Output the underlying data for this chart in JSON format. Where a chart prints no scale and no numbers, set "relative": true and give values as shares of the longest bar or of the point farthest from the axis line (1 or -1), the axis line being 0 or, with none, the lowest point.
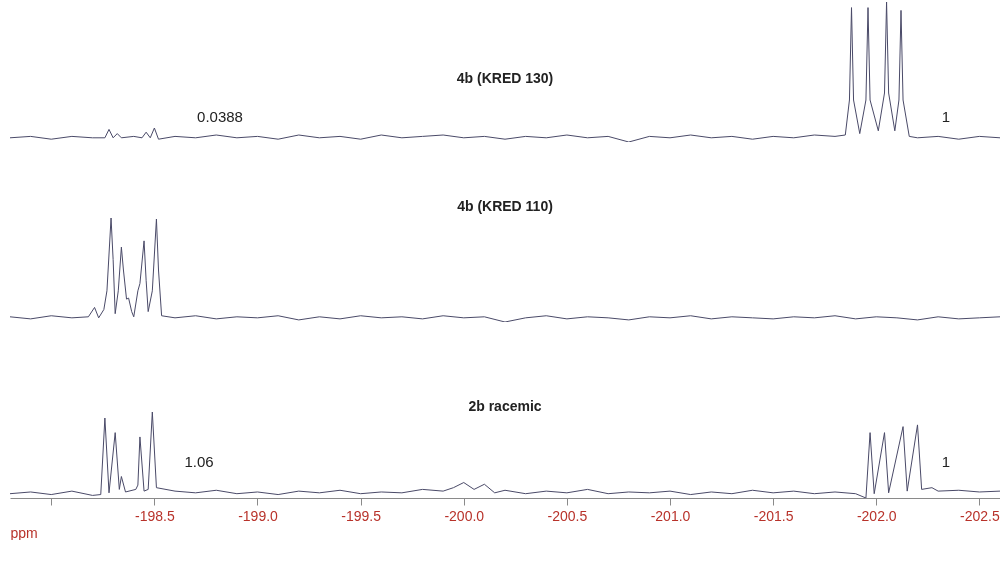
{
  "chart_data": [
    {
      "type": "line",
      "title": "4b (KRED 130)",
      "relative": true,
      "color": "#4a4a68",
      "xlim": [
        -197.8,
        -202.6
      ],
      "tick_labels": false,
      "x": [
        -197.8,
        -197.9,
        -198.0,
        -198.1,
        -198.2,
        -198.26,
        -198.28,
        -198.3,
        -198.32,
        -198.34,
        -198.4,
        -198.44,
        -198.46,
        -198.48,
        -198.5,
        -198.52,
        -198.6,
        -198.7,
        -198.8,
        -198.9,
        -199.0,
        -199.1,
        -199.2,
        -199.3,
        -199.4,
        -199.5,
        -199.6,
        -199.7,
        -199.8,
        -199.9,
        -200.0,
        -200.1,
        -200.2,
        -200.3,
        -200.4,
        -200.5,
        -200.6,
        -200.7,
        -200.8,
        -200.9,
        -201.0,
        -201.1,
        -201.2,
        -201.3,
        -201.4,
        -201.5,
        -201.6,
        -201.7,
        -201.8,
        -201.85,
        -201.87,
        -201.88,
        -201.89,
        -201.92,
        -201.95,
        -201.96,
        -201.97,
        -202.01,
        -202.04,
        -202.05,
        -202.06,
        -202.09,
        -202.11,
        -202.12,
        -202.13,
        -202.16,
        -202.2,
        -202.3,
        -202.4,
        -202.5,
        -202.6
      ],
      "values": [
        0.03,
        0.04,
        0.02,
        0.04,
        0.03,
        0.03,
        0.09,
        0.03,
        0.06,
        0.03,
        0.04,
        0.03,
        0.07,
        0.03,
        0.1,
        0.02,
        0.04,
        0.03,
        0.05,
        0.03,
        0.04,
        0.02,
        0.05,
        0.03,
        0.04,
        0.02,
        0.05,
        0.03,
        0.04,
        0.05,
        0.03,
        0.04,
        0.02,
        0.04,
        0.03,
        0.05,
        0.03,
        0.04,
        0.0,
        0.04,
        0.03,
        0.05,
        0.03,
        0.04,
        0.02,
        0.04,
        0.03,
        0.05,
        0.04,
        0.05,
        0.3,
        0.96,
        0.3,
        0.06,
        0.3,
        0.96,
        0.3,
        0.08,
        0.35,
        1,
        0.35,
        0.08,
        0.3,
        0.94,
        0.3,
        0.04,
        0.03,
        0.04,
        0.02,
        0.04,
        0.03
      ],
      "annotations": [
        "0.0388",
        "1"
      ]
    },
    {
      "type": "line",
      "title": "4b (KRED 110)",
      "relative": true,
      "color": "#4a4a68",
      "xlim": [
        -197.8,
        -202.6
      ],
      "tick_labels": false,
      "x": [
        -197.8,
        -197.9,
        -198.0,
        -198.1,
        -198.18,
        -198.21,
        -198.23,
        -198.255,
        -198.27,
        -198.29,
        -198.3,
        -198.31,
        -198.325,
        -198.34,
        -198.35,
        -198.365,
        -198.375,
        -198.39,
        -198.4,
        -198.42,
        -198.43,
        -198.45,
        -198.46,
        -198.47,
        -198.49,
        -198.51,
        -198.52,
        -198.535,
        -198.6,
        -198.7,
        -198.8,
        -198.9,
        -199.0,
        -199.1,
        -199.2,
        -199.3,
        -199.4,
        -199.5,
        -199.6,
        -199.7,
        -199.8,
        -199.9,
        -200.0,
        -200.1,
        -200.2,
        -200.3,
        -200.4,
        -200.5,
        -200.6,
        -200.7,
        -200.8,
        -200.9,
        -201.0,
        -201.1,
        -201.2,
        -201.3,
        -201.4,
        -201.5,
        -201.6,
        -201.7,
        -201.8,
        -201.9,
        -202.0,
        -202.1,
        -202.2,
        -202.3,
        -202.4,
        -202.5,
        -202.6
      ],
      "values": [
        0.05,
        0.03,
        0.06,
        0.04,
        0.05,
        0.14,
        0.04,
        0.12,
        0.3,
        1,
        0.6,
        0.08,
        0.3,
        0.72,
        0.5,
        0.22,
        0.23,
        0.1,
        0.05,
        0.3,
        0.37,
        0.78,
        0.4,
        0.1,
        0.3,
        0.99,
        0.5,
        0.06,
        0.04,
        0.06,
        0.03,
        0.05,
        0.04,
        0.06,
        0.02,
        0.05,
        0.03,
        0.06,
        0.04,
        0.05,
        0.03,
        0.06,
        0.04,
        0.05,
        0.0,
        0.04,
        0.06,
        0.03,
        0.05,
        0.04,
        0.02,
        0.05,
        0.04,
        0.06,
        0.03,
        0.05,
        0.04,
        0.03,
        0.05,
        0.04,
        0.06,
        0.03,
        0.05,
        0.04,
        0.02,
        0.05,
        0.03,
        0.04,
        0.05
      ]
    },
    {
      "type": "line",
      "title": "2b racemic",
      "relative": true,
      "color": "#4a4a68",
      "xlim": [
        -197.8,
        -202.6
      ],
      "tick_labels": "x",
      "xlabel": "ppm",
      "xticks": [
        {
          "value": -198.0,
          "label": null
        },
        -198.5,
        {
          "value": -199,
          "label": "-199.0"
        },
        -199.5,
        {
          "value": -200,
          "label": "-200.0"
        },
        -200.5,
        {
          "value": -201,
          "label": "-201.0"
        },
        -201.5,
        {
          "value": -202,
          "label": "-202.0"
        },
        -202.5
      ],
      "x": [
        -197.8,
        -197.9,
        -198.0,
        -198.1,
        -198.2,
        -198.24,
        -198.26,
        -198.28,
        -198.31,
        -198.33,
        -198.34,
        -198.36,
        -198.41,
        -198.42,
        -198.43,
        -198.45,
        -198.47,
        -198.49,
        -198.51,
        -198.6,
        -198.7,
        -198.8,
        -198.9,
        -199.0,
        -199.1,
        -199.2,
        -199.3,
        -199.4,
        -199.5,
        -199.6,
        -199.7,
        -199.8,
        -199.9,
        -199.95,
        -200.0,
        -200.05,
        -200.1,
        -200.15,
        -200.2,
        -200.3,
        -200.4,
        -200.5,
        -200.6,
        -200.7,
        -200.8,
        -200.9,
        -201.0,
        -201.1,
        -201.2,
        -201.3,
        -201.4,
        -201.5,
        -201.6,
        -201.7,
        -201.8,
        -201.9,
        -201.95,
        -201.97,
        -201.99,
        -202.04,
        -202.06,
        -202.13,
        -202.15,
        -202.2,
        -202.22,
        -202.27,
        -202.3,
        -202.4,
        -202.5,
        -202.6
      ],
      "values": [
        0.05,
        0.07,
        0.04,
        0.08,
        0.03,
        0.04,
        0.93,
        0.06,
        0.76,
        0.1,
        0.25,
        0.07,
        0.1,
        0.15,
        0.71,
        0.08,
        0.1,
        1,
        0.12,
        0.08,
        0.06,
        0.09,
        0.05,
        0.07,
        0.04,
        0.08,
        0.06,
        0.09,
        0.05,
        0.07,
        0.06,
        0.1,
        0.08,
        0.12,
        0.18,
        0.1,
        0.16,
        0.06,
        0.09,
        0.05,
        0.08,
        0.06,
        0.1,
        0.05,
        0.07,
        0.06,
        0.08,
        0.04,
        0.07,
        0.05,
        0.09,
        0.06,
        0.08,
        0.05,
        0.07,
        0.05,
        0.0,
        0.76,
        0.05,
        0.76,
        0.06,
        0.83,
        0.08,
        0.85,
        0.1,
        0.12,
        0.08,
        0.09,
        0.07,
        0.08
      ],
      "annotations": [
        "1.06",
        "1"
      ]
    }
  ]
}
